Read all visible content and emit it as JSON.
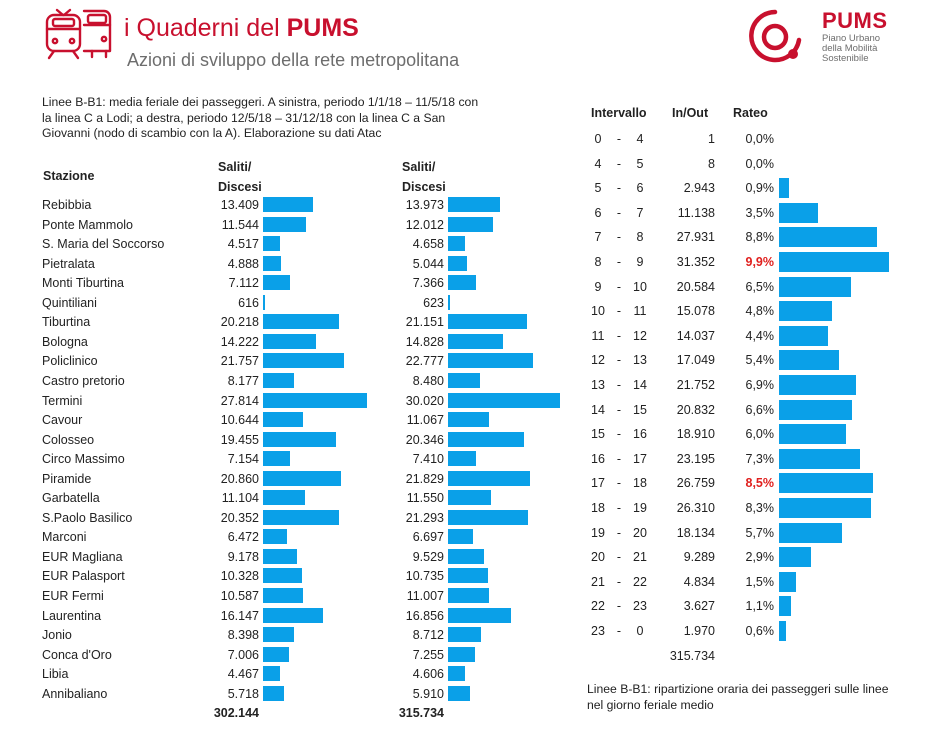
{
  "header": {
    "title_prefix": "i Quaderni del ",
    "title_bold": "PUMS",
    "subtitle": "Azioni di sviluppo della rete metropolitana",
    "logo_name": "PUMS",
    "logo_desc": [
      "Piano Urbano",
      "della Mobilità",
      "Sostenibile"
    ]
  },
  "caption_left": "Linee B-B1: media feriale dei passeggeri. A sinistra, periodo 1/1/18 – 11/5/18 con la linea C a Lodi; a destra, periodo 12/5/18 – 31/12/18 con la linea C a San Giovanni (nodo di scambio con la A). Elaborazione su dati Atac",
  "caption_right": "Linee B-B1: ripartizione oraria dei passeggeri sulle linee nel giorno feriale medio",
  "colors": {
    "bar": "#0aa0e8",
    "brand": "#c8102e",
    "highlight": "#e0201e"
  },
  "chart_data": [
    {
      "type": "bar",
      "title": "Linee B-B1: media feriale dei passeggeri",
      "orientation": "horizontal",
      "headers": {
        "station": "Stazione",
        "series_label_1": "Saliti/",
        "series_label_2": "Discesi"
      },
      "categories": [
        "Rebibbia",
        "Ponte Mammolo",
        "S. Maria del Soccorso",
        "Pietralata",
        "Monti Tiburtina",
        "Quintiliani",
        "Tiburtina",
        "Bologna",
        "Policlinico",
        "Castro pretorio",
        "Termini",
        "Cavour",
        "Colosseo",
        "Circo Massimo",
        "Piramide",
        "Garbatella",
        "S.Paolo Basilico",
        "Marconi",
        "EUR Magliana",
        "EUR Palasport",
        "EUR Fermi",
        "Laurentina",
        "Jonio",
        "Conca d'Oro",
        "Libia",
        "Annibaliano"
      ],
      "series": [
        {
          "name": "1/1/18 – 11/5/18",
          "values": [
            13409,
            11544,
            4517,
            4888,
            7112,
            616,
            20218,
            14222,
            21757,
            8177,
            27814,
            10644,
            19455,
            7154,
            20860,
            11104,
            20352,
            6472,
            9178,
            10328,
            10587,
            16147,
            8398,
            7006,
            4467,
            5718
          ],
          "labels": [
            "13.409",
            "11.544",
            "4.517",
            "4.888",
            "7.112",
            "616",
            "20.218",
            "14.222",
            "21.757",
            "8.177",
            "27.814",
            "10.644",
            "19.455",
            "7.154",
            "20.860",
            "11.104",
            "20.352",
            "6.472",
            "9.178",
            "10.328",
            "10.587",
            "16.147",
            "8.398",
            "7.006",
            "4.467",
            "5.718"
          ],
          "total": "302.144"
        },
        {
          "name": "12/5/18 – 31/12/18",
          "values": [
            13973,
            12012,
            4658,
            5044,
            7366,
            623,
            21151,
            14828,
            22777,
            8480,
            30020,
            11067,
            20346,
            7410,
            21829,
            11550,
            21293,
            6697,
            9529,
            10735,
            11007,
            16856,
            8712,
            7255,
            4606,
            5910
          ],
          "labels": [
            "13.973",
            "12.012",
            "4.658",
            "5.044",
            "7.366",
            "623",
            "21.151",
            "14.828",
            "22.777",
            "8.480",
            "30.020",
            "11.067",
            "20.346",
            "7.410",
            "21.829",
            "11.550",
            "21.293",
            "6.697",
            "9.529",
            "10.735",
            "11.007",
            "16.856",
            "8.712",
            "7.255",
            "4.606",
            "5.910"
          ],
          "total": "315.734"
        }
      ]
    },
    {
      "type": "bar",
      "title": "Linee B-B1: ripartizione oraria dei passeggeri",
      "orientation": "horizontal",
      "headers": {
        "interval": "Intervallo",
        "inout": "In/Out",
        "rate": "Rateo"
      },
      "rows": [
        {
          "from": "0",
          "to": "4",
          "inout": "1",
          "rate_label": "0,0%",
          "rate": 0.0,
          "highlight": false
        },
        {
          "from": "4",
          "to": "5",
          "inout": "8",
          "rate_label": "0,0%",
          "rate": 0.0,
          "highlight": false
        },
        {
          "from": "5",
          "to": "6",
          "inout": "2.943",
          "rate_label": "0,9%",
          "rate": 0.9,
          "highlight": false
        },
        {
          "from": "6",
          "to": "7",
          "inout": "11.138",
          "rate_label": "3,5%",
          "rate": 3.5,
          "highlight": false
        },
        {
          "from": "7",
          "to": "8",
          "inout": "27.931",
          "rate_label": "8,8%",
          "rate": 8.8,
          "highlight": false
        },
        {
          "from": "8",
          "to": "9",
          "inout": "31.352",
          "rate_label": "9,9%",
          "rate": 9.9,
          "highlight": true
        },
        {
          "from": "9",
          "to": "10",
          "inout": "20.584",
          "rate_label": "6,5%",
          "rate": 6.5,
          "highlight": false
        },
        {
          "from": "10",
          "to": "11",
          "inout": "15.078",
          "rate_label": "4,8%",
          "rate": 4.8,
          "highlight": false
        },
        {
          "from": "11",
          "to": "12",
          "inout": "14.037",
          "rate_label": "4,4%",
          "rate": 4.4,
          "highlight": false
        },
        {
          "from": "12",
          "to": "13",
          "inout": "17.049",
          "rate_label": "5,4%",
          "rate": 5.4,
          "highlight": false
        },
        {
          "from": "13",
          "to": "14",
          "inout": "21.752",
          "rate_label": "6,9%",
          "rate": 6.9,
          "highlight": false
        },
        {
          "from": "14",
          "to": "15",
          "inout": "20.832",
          "rate_label": "6,6%",
          "rate": 6.6,
          "highlight": false
        },
        {
          "from": "15",
          "to": "16",
          "inout": "18.910",
          "rate_label": "6,0%",
          "rate": 6.0,
          "highlight": false
        },
        {
          "from": "16",
          "to": "17",
          "inout": "23.195",
          "rate_label": "7,3%",
          "rate": 7.3,
          "highlight": false
        },
        {
          "from": "17",
          "to": "18",
          "inout": "26.759",
          "rate_label": "8,5%",
          "rate": 8.5,
          "highlight": true
        },
        {
          "from": "18",
          "to": "19",
          "inout": "26.310",
          "rate_label": "8,3%",
          "rate": 8.3,
          "highlight": false
        },
        {
          "from": "19",
          "to": "20",
          "inout": "18.134",
          "rate_label": "5,7%",
          "rate": 5.7,
          "highlight": false
        },
        {
          "from": "20",
          "to": "21",
          "inout": "9.289",
          "rate_label": "2,9%",
          "rate": 2.9,
          "highlight": false
        },
        {
          "from": "21",
          "to": "22",
          "inout": "4.834",
          "rate_label": "1,5%",
          "rate": 1.5,
          "highlight": false
        },
        {
          "from": "22",
          "to": "23",
          "inout": "3.627",
          "rate_label": "1,1%",
          "rate": 1.1,
          "highlight": false
        },
        {
          "from": "23",
          "to": "0",
          "inout": "1.970",
          "rate_label": "0,6%",
          "rate": 0.6,
          "highlight": false
        }
      ],
      "separator": "-",
      "total": "315.734"
    }
  ]
}
